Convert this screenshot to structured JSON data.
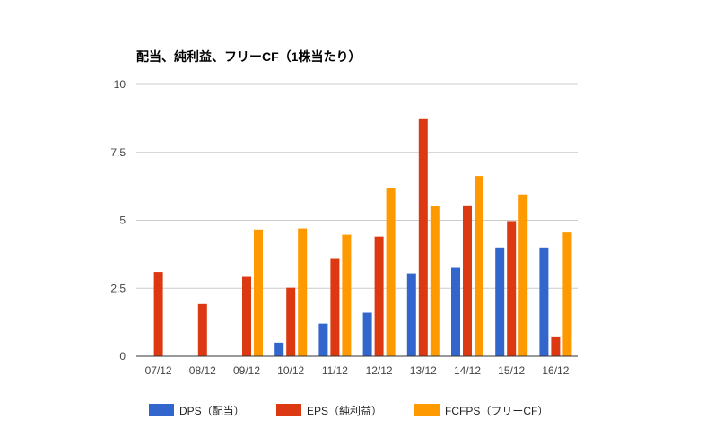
{
  "chart_data": {
    "type": "bar",
    "title": "配当、純利益、フリーCF（1株当たり）",
    "xlabel": "",
    "ylabel": "",
    "ylim": [
      0,
      10
    ],
    "yticks": [
      0,
      2.5,
      5,
      7.5,
      10
    ],
    "ytick_labels": [
      "0",
      "2.5",
      "5",
      "7.5",
      "10"
    ],
    "grid": true,
    "legend_position": "bottom",
    "categories": [
      "07/12",
      "08/12",
      "09/12",
      "10/12",
      "11/12",
      "12/12",
      "13/12",
      "14/12",
      "15/12",
      "16/12"
    ],
    "series": [
      {
        "name": "DPS（配当）",
        "color": "#3366cc",
        "values": [
          0,
          0,
          0,
          0.5,
          1.2,
          1.6,
          3.05,
          3.25,
          4.0,
          4.0
        ]
      },
      {
        "name": "EPS（純利益）",
        "color": "#dc3912",
        "values": [
          3.1,
          1.92,
          2.92,
          2.52,
          3.58,
          4.4,
          8.72,
          5.55,
          4.97,
          0.73
        ]
      },
      {
        "name": "FCFPS（フリーCF）",
        "color": "#ff9900",
        "values": [
          0,
          0,
          4.66,
          4.7,
          4.47,
          6.17,
          5.52,
          6.63,
          5.95,
          4.55
        ]
      }
    ]
  }
}
